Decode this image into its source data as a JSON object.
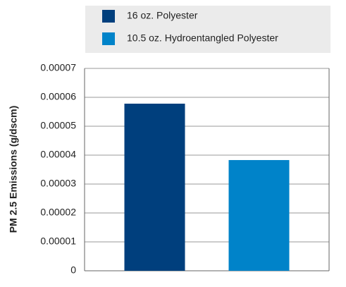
{
  "chart_data": {
    "type": "bar",
    "y_label": "PM 2.5 Emissions (g/dscm)",
    "categories": [
      null
    ],
    "series": [
      {
        "name": "16 oz. Polyester",
        "color": "#003f7d",
        "values": [
          5.78e-05
        ]
      },
      {
        "name": "10.5 oz. Hydroentangled Polyester",
        "color": "#0083c9",
        "values": [
          3.83e-05
        ]
      }
    ],
    "ylim": [
      0,
      7e-05
    ],
    "yticks": [
      0,
      1e-05,
      2e-05,
      3e-05,
      4e-05,
      5e-05,
      6e-05,
      7e-05
    ],
    "grid": true,
    "legend": "top"
  }
}
